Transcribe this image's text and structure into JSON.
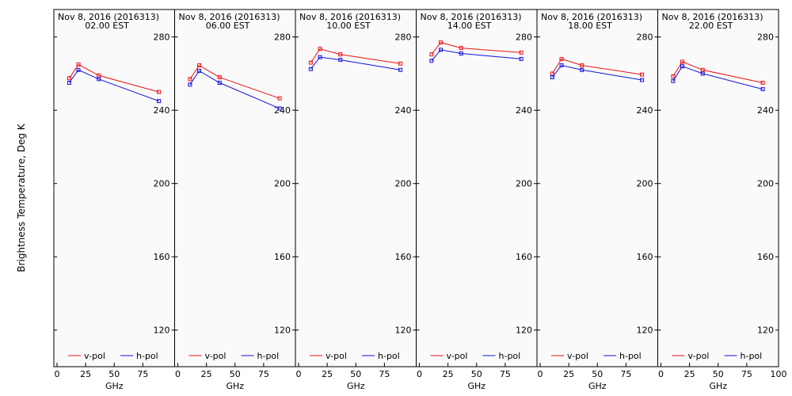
{
  "figure": {
    "ylabel": "Brightness Temperature, Deg K",
    "colors": {
      "v_pol": "#ee1111",
      "h_pol": "#1111dd",
      "frame": "#000000",
      "background": "#fafafa"
    }
  },
  "chart_data": {
    "type": "line",
    "ylabel": "Brightness Temperature, Deg K",
    "xlabel": "GHz",
    "xlim": [
      0,
      100
    ],
    "ylim": [
      100,
      295
    ],
    "x_ticks": [
      0,
      25,
      50,
      75
    ],
    "x_tick_labels": [
      "0",
      "25",
      "50",
      "75"
    ],
    "last_x_tick_label": "100",
    "y_ticks": [
      120,
      160,
      200,
      240,
      280
    ],
    "legend": [
      "v-pol",
      "h-pol"
    ],
    "frequencies_ghz": [
      10.65,
      18.7,
      36.5,
      89.0
    ],
    "panels": [
      {
        "date": "Nov  8, 2016 (2016313)",
        "time": "02.00 EST",
        "series": [
          {
            "name": "v-pol",
            "values": [
              257.5,
              265.0,
              259.0,
              250.0
            ]
          },
          {
            "name": "h-pol",
            "values": [
              255.0,
              262.0,
              257.0,
              245.0
            ]
          }
        ]
      },
      {
        "date": "Nov  8, 2016 (2016313)",
        "time": "06.00 EST",
        "series": [
          {
            "name": "v-pol",
            "values": [
              257.0,
              264.5,
              258.0,
              246.5
            ]
          },
          {
            "name": "h-pol",
            "values": [
              254.0,
              261.5,
              255.0,
              241.0
            ]
          }
        ]
      },
      {
        "date": "Nov  8, 2016 (2016313)",
        "time": "10.00 EST",
        "series": [
          {
            "name": "v-pol",
            "values": [
              266.0,
              273.5,
              270.5,
              265.5
            ]
          },
          {
            "name": "h-pol",
            "values": [
              262.5,
              269.0,
              267.5,
              262.0
            ]
          }
        ]
      },
      {
        "date": "Nov  8, 2016 (2016313)",
        "time": "14.00 EST",
        "series": [
          {
            "name": "v-pol",
            "values": [
              270.5,
              277.0,
              274.0,
              271.5
            ]
          },
          {
            "name": "h-pol",
            "values": [
              267.0,
              273.0,
              271.0,
              268.0
            ]
          }
        ]
      },
      {
        "date": "Nov  8, 2016 (2016313)",
        "time": "18.00 EST",
        "series": [
          {
            "name": "v-pol",
            "values": [
              260.0,
              268.0,
              264.5,
              259.5
            ]
          },
          {
            "name": "h-pol",
            "values": [
              258.0,
              264.5,
              262.0,
              256.5
            ]
          }
        ]
      },
      {
        "date": "Nov  8, 2016 (2016313)",
        "time": "22.00 EST",
        "series": [
          {
            "name": "v-pol",
            "values": [
              258.5,
              266.5,
              262.0,
              255.0
            ]
          },
          {
            "name": "h-pol",
            "values": [
              256.0,
              264.0,
              260.0,
              251.5
            ]
          }
        ]
      }
    ]
  }
}
